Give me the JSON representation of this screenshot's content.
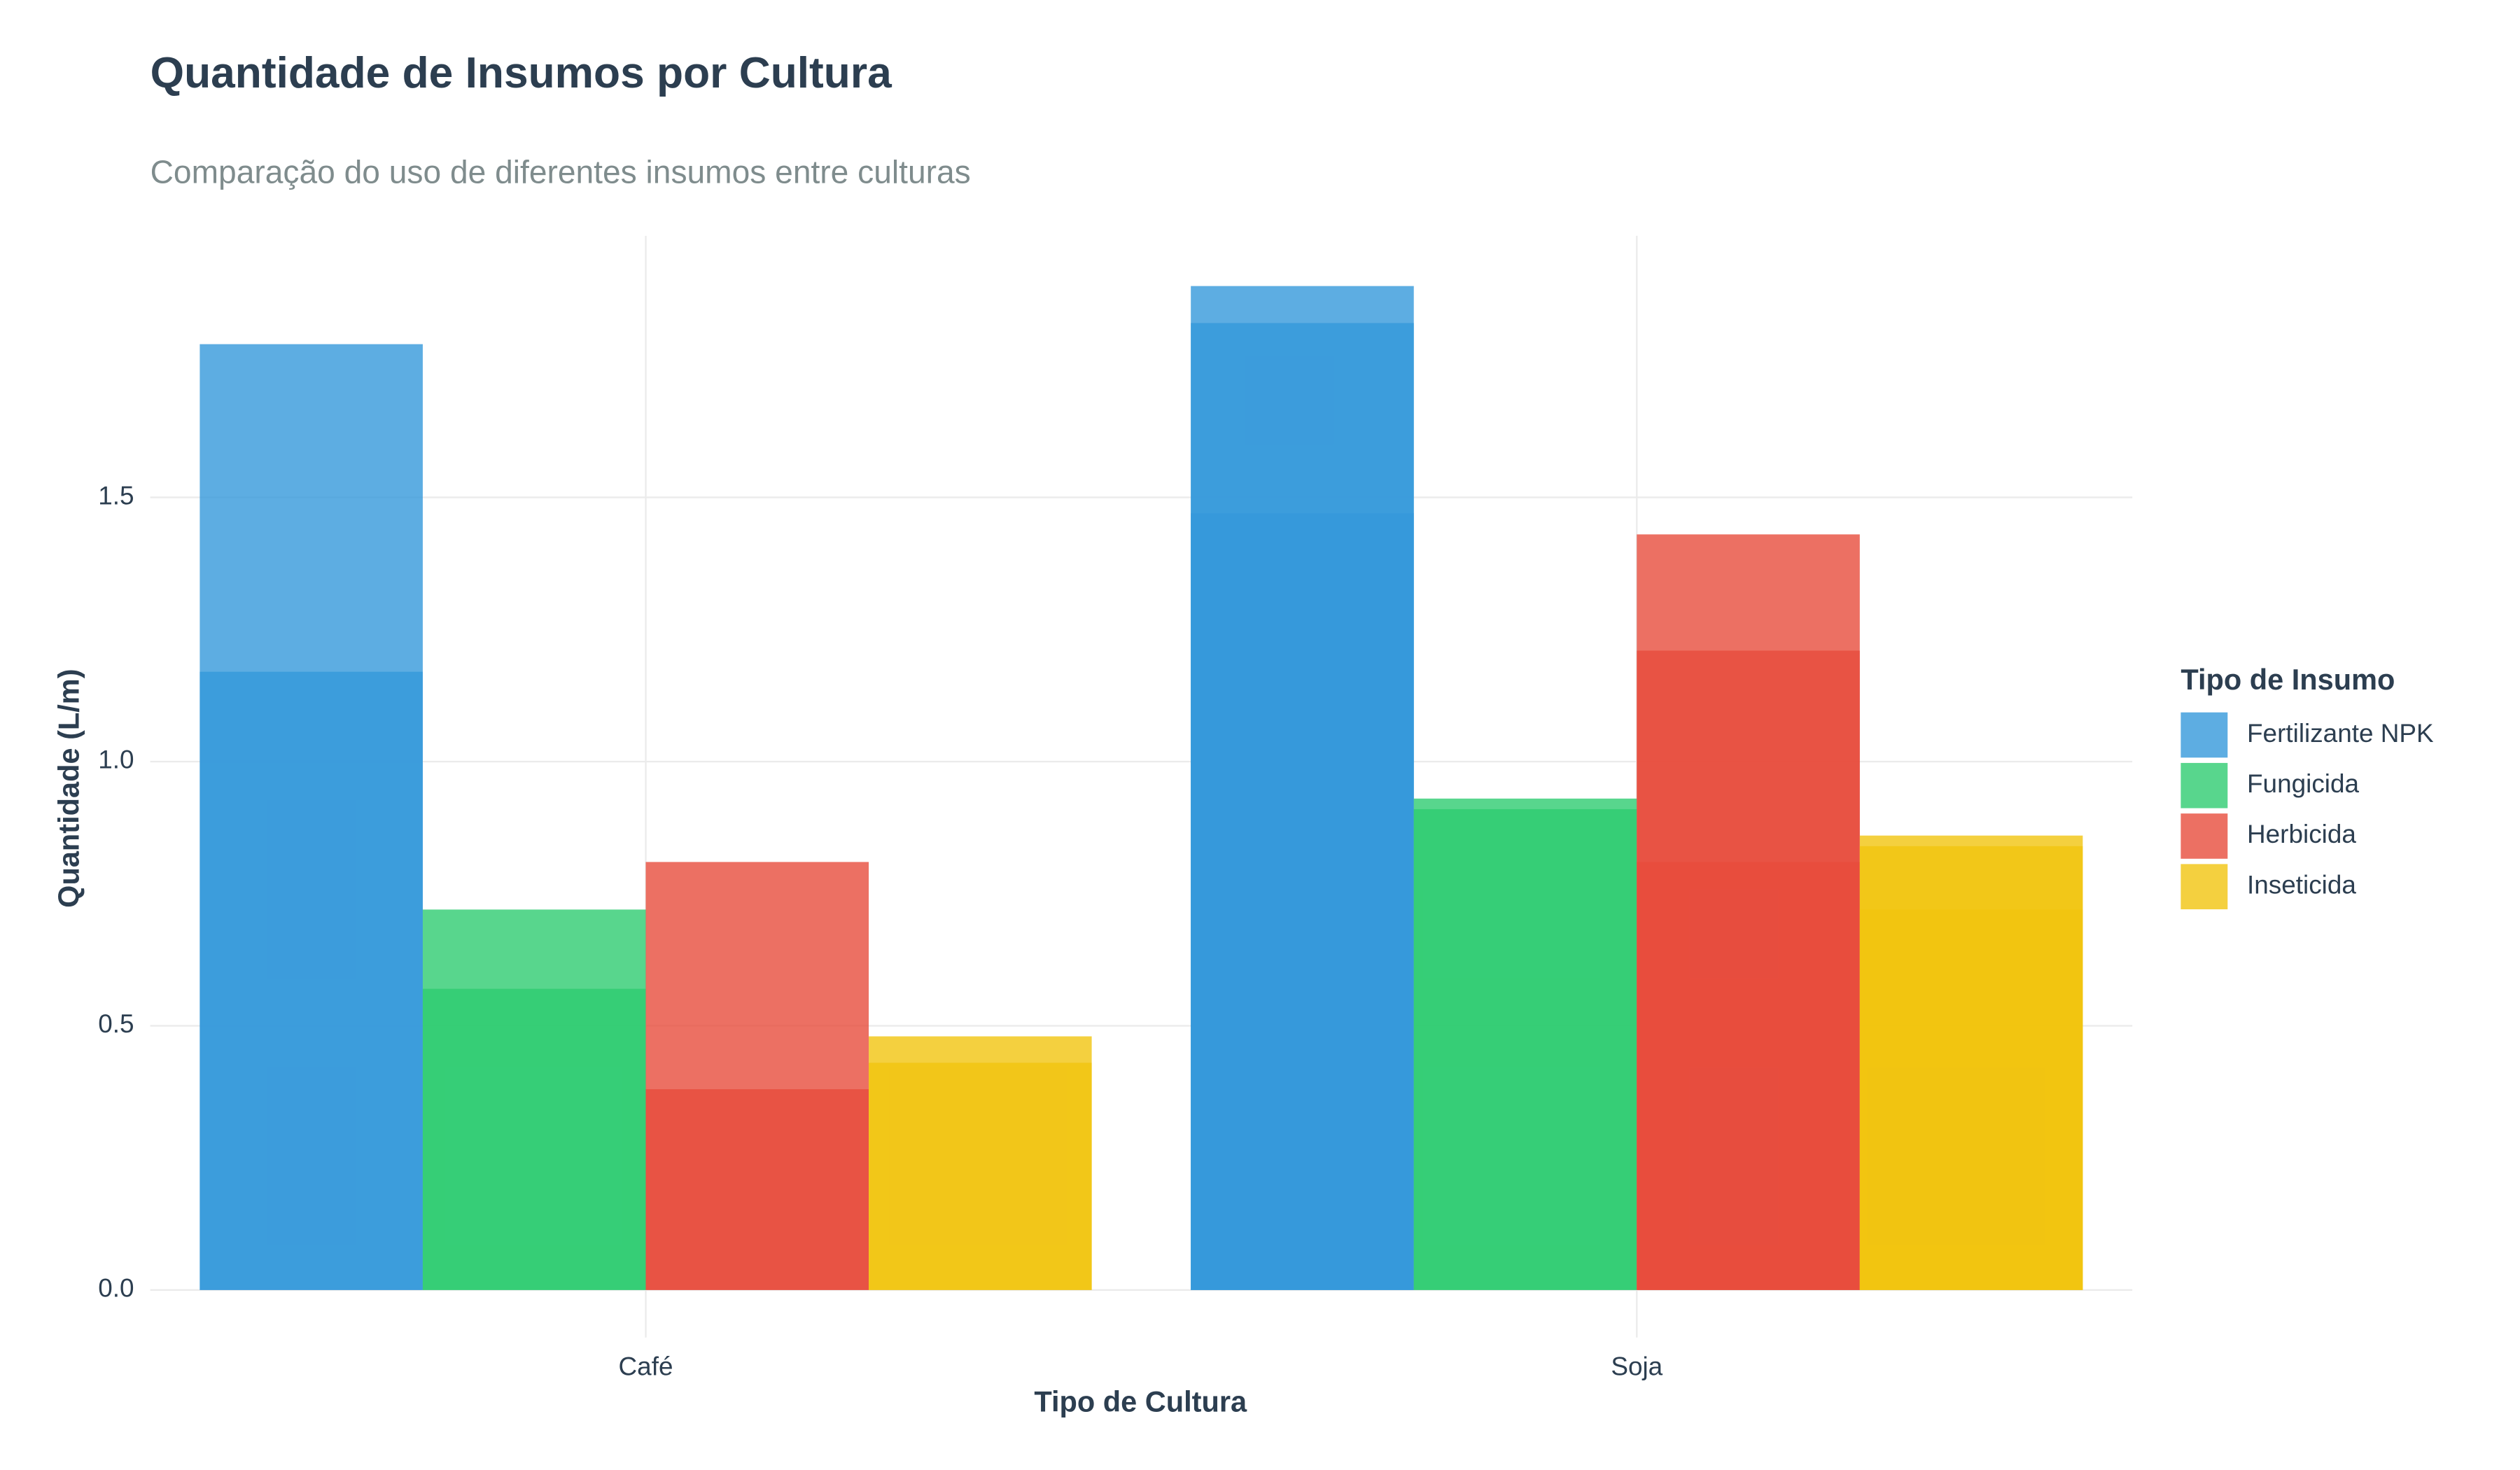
{
  "chart_data": {
    "type": "bar",
    "title": "Quantidade de Insumos por Cultura",
    "subtitle": "Comparação do uso de diferentes insumos entre culturas",
    "x_label": "Tipo de Cultura",
    "y_label": "Quantidade (L/m)",
    "legend_title": "Tipo de Insumo",
    "categories": [
      "Café",
      "Soja"
    ],
    "series": [
      {
        "name": "Fertilizante NPK",
        "color": "#3498db",
        "values": [
          [
            1.17,
            1.79
          ],
          [
            1.47,
            1.83,
            1.9
          ]
        ]
      },
      {
        "name": "Fungicida",
        "color": "#2ecc71",
        "values": [
          [
            0.57,
            0.72
          ],
          [
            0.91,
            0.93
          ]
        ]
      },
      {
        "name": "Herbicida",
        "color": "#e74c3c",
        "values": [
          [
            0.38,
            0.81
          ],
          [
            0.81,
            1.21,
            1.43
          ]
        ]
      },
      {
        "name": "Inseticida",
        "color": "#f1c40f",
        "values": [
          [
            0.43,
            0.48
          ],
          [
            0.72,
            0.84,
            0.86
          ]
        ]
      }
    ],
    "ylim": [
      -0.09,
      1.995
    ],
    "yticks": [
      {
        "value": 0,
        "label": "0.0"
      },
      0.5,
      {
        "value": 1,
        "label": "1.0"
      },
      1.5
    ],
    "grid": true,
    "legend": "right"
  }
}
